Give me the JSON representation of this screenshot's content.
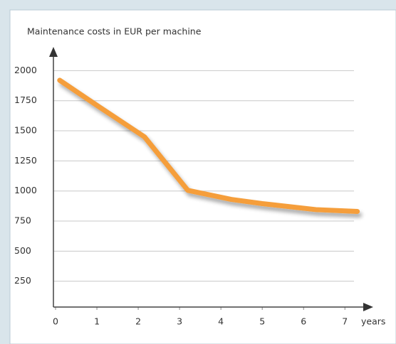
{
  "chart_data": {
    "type": "line",
    "title": "Maintenance costs in EUR per machine",
    "x_label": "years",
    "x": [
      0.1,
      1.05,
      2.15,
      3.2,
      4.25,
      5.0,
      6.3,
      7.3
    ],
    "series": [
      {
        "name": "Maintenance costs",
        "color": "#f59e3a",
        "values": [
          1920,
          1700,
          1450,
          1005,
          930,
          895,
          845,
          830
        ]
      }
    ],
    "xlim": [
      0,
      7.65
    ],
    "xticks": [
      0,
      1,
      2,
      3,
      4,
      5,
      6,
      7
    ],
    "ylim": [
      0,
      2150
    ],
    "yticks": [
      250,
      500,
      750,
      1000,
      1250,
      1500,
      1750,
      2000
    ],
    "grid": true
  }
}
